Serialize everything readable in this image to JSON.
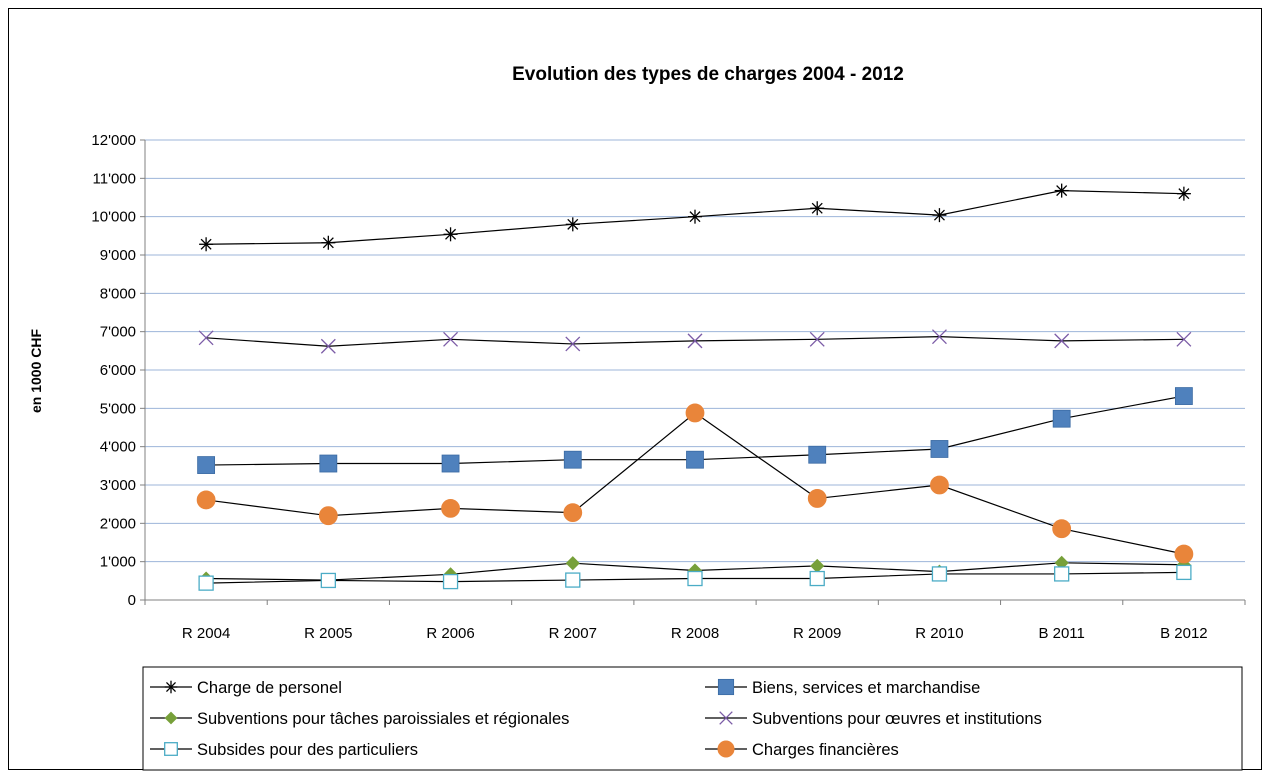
{
  "chart_data": {
    "type": "line",
    "title": "Evolution des types de charges 2004 - 2012",
    "xlabel": "",
    "ylabel": "en 1000 CHF",
    "categories": [
      "R 2004",
      "R 2005",
      "R 2006",
      "R 2007",
      "R 2008",
      "R 2009",
      "R 2010",
      "B 2011",
      "B 2012"
    ],
    "ylim": [
      0,
      12000
    ],
    "y_ticks": [
      {
        "value": 0,
        "label": "0"
      },
      {
        "value": 1000,
        "label": "1'000"
      },
      {
        "value": 2000,
        "label": "2'000"
      },
      {
        "value": 3000,
        "label": "3'000"
      },
      {
        "value": 4000,
        "label": "4'000"
      },
      {
        "value": 5000,
        "label": "5'000"
      },
      {
        "value": 6000,
        "label": "6'000"
      },
      {
        "value": 7000,
        "label": "7'000"
      },
      {
        "value": 8000,
        "label": "8'000"
      },
      {
        "value": 9000,
        "label": "9'000"
      },
      {
        "value": 10000,
        "label": "10'000"
      },
      {
        "value": 11000,
        "label": "11'000"
      },
      {
        "value": 12000,
        "label": "12'000"
      }
    ],
    "grid": true,
    "legend_position": "bottom",
    "series": [
      {
        "name": "Charge de personel",
        "marker": "asterisk",
        "color": "#000000",
        "values": [
          9280,
          9320,
          9540,
          9800,
          10000,
          10220,
          10040,
          10680,
          10600
        ]
      },
      {
        "name": "Biens, services et marchandise",
        "marker": "square",
        "color": "#4F81BD",
        "values": [
          3520,
          3560,
          3560,
          3660,
          3660,
          3790,
          3940,
          4730,
          5320
        ]
      },
      {
        "name": "Subventions pour tâches paroissiales et régionales",
        "marker": "diamond",
        "color": "#77A03A",
        "values": [
          560,
          520,
          670,
          960,
          770,
          890,
          740,
          970,
          920
        ]
      },
      {
        "name": "Subventions pour œuvres et institutions",
        "marker": "x",
        "color": "#7B5BA6",
        "values": [
          6840,
          6620,
          6800,
          6680,
          6760,
          6800,
          6870,
          6760,
          6800
        ]
      },
      {
        "name": "Subsides pour des particuliers",
        "marker": "square-open",
        "color": "#4BACC6",
        "values": [
          440,
          510,
          480,
          520,
          560,
          560,
          680,
          680,
          720
        ]
      },
      {
        "name": "Charges financières",
        "marker": "circle",
        "color": "#E9853A",
        "values": [
          2610,
          2200,
          2390,
          2280,
          4880,
          2650,
          3000,
          1860,
          1200
        ]
      }
    ]
  }
}
